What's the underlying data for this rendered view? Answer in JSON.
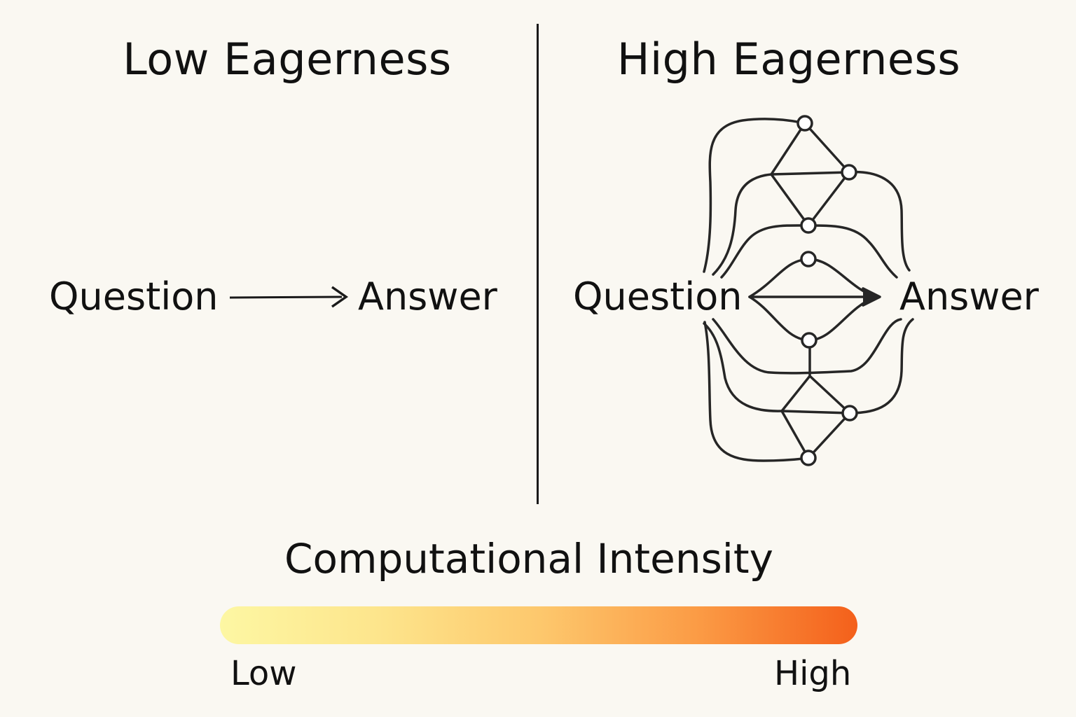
{
  "left_panel": {
    "title": "Low Eagerness",
    "question_label": "Question",
    "answer_label": "Answer"
  },
  "right_panel": {
    "title": "High Eagerness",
    "question_label": "Question",
    "answer_label": "Answer"
  },
  "intensity_scale": {
    "title": "Computational Intensity",
    "low_label": "Low",
    "high_label": "High",
    "gradient_colors": [
      "#fdf7a3",
      "#fde58c",
      "#fdc86d",
      "#fb9b45",
      "#f4601b"
    ]
  },
  "colors": {
    "background": "#faf8f2",
    "ink": "#1a1a1a"
  }
}
